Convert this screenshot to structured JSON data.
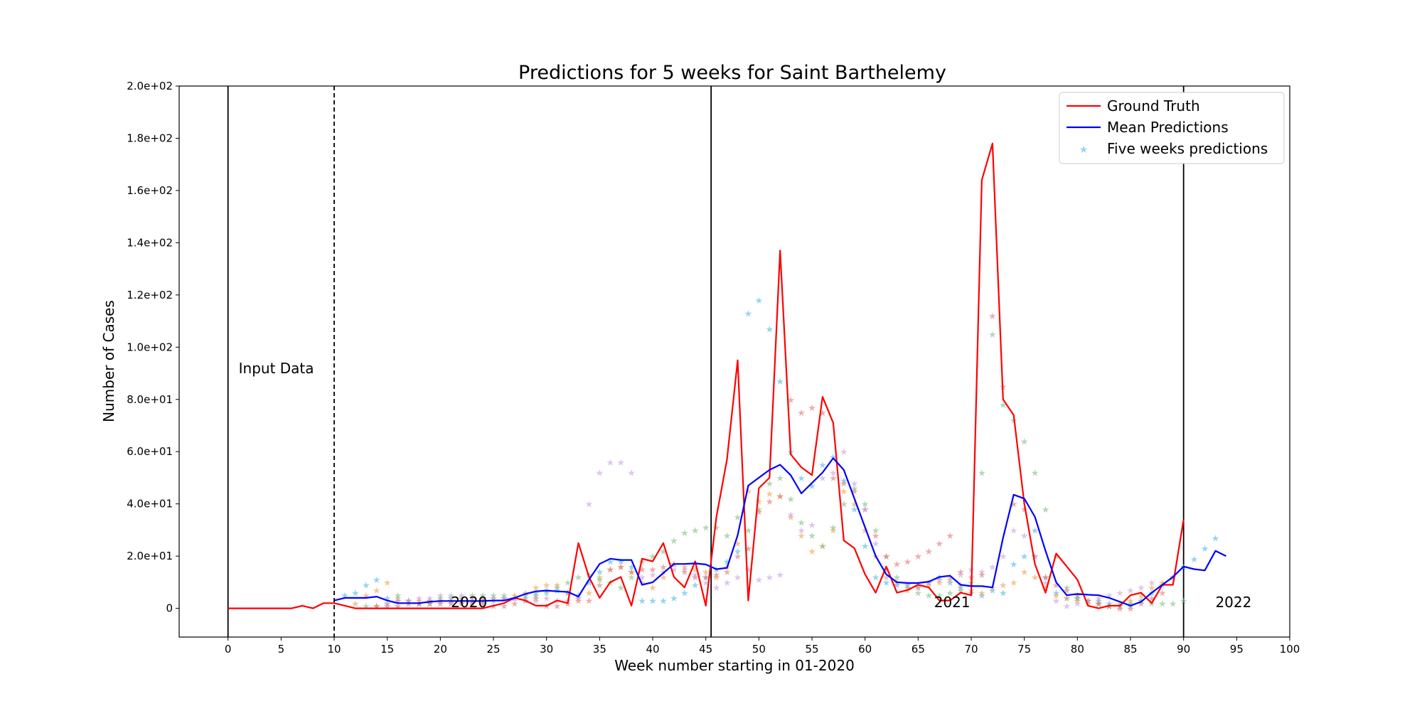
{
  "chart_data": {
    "type": "line",
    "title": "Predictions for 5 weeks for Saint Barthelemy",
    "xlabel": "Week number starting in 01-2020",
    "ylabel": "Number of Cases",
    "xlim": [
      -4.6,
      100
    ],
    "ylim": [
      -11,
      200
    ],
    "xticks": [
      0,
      5,
      10,
      15,
      20,
      25,
      30,
      35,
      40,
      45,
      50,
      55,
      60,
      65,
      70,
      75,
      80,
      85,
      90,
      95,
      100
    ],
    "xtick_labels": [
      "0",
      "5",
      "10",
      "15",
      "20",
      "25",
      "30",
      "35",
      "40",
      "45",
      "50",
      "55",
      "60",
      "65",
      "70",
      "75",
      "80",
      "85",
      "90",
      "95",
      "100"
    ],
    "yticks": [
      0,
      20,
      40,
      60,
      80,
      100,
      120,
      140,
      160,
      180,
      200
    ],
    "ytick_labels": [
      "0",
      "2.0e+01",
      "4.0e+01",
      "6.0e+01",
      "8.0e+01",
      "1.0e+02",
      "1.2e+02",
      "1.4e+02",
      "1.6e+02",
      "1.8e+02",
      "2.0e+02"
    ],
    "legend_position": "top-right",
    "grid": false,
    "vertical_lines": [
      {
        "x": 0,
        "style": "solid"
      },
      {
        "x": 10,
        "style": "dashed"
      },
      {
        "x": 45.5,
        "style": "solid"
      },
      {
        "x": 90,
        "style": "solid"
      }
    ],
    "annotations": [
      {
        "text": "Input Data",
        "x": 1,
        "y": 90
      },
      {
        "text": "2020",
        "x": 21,
        "y": 0.5
      },
      {
        "text": "2021",
        "x": 66.5,
        "y": 0.5
      },
      {
        "text": "2022",
        "x": 93,
        "y": 0.5
      }
    ],
    "series": [
      {
        "name": "Ground Truth",
        "color": "#ff0000",
        "style": "line",
        "x": [
          0,
          1,
          2,
          3,
          4,
          5,
          6,
          7,
          8,
          9,
          10,
          11,
          12,
          13,
          14,
          15,
          16,
          17,
          18,
          19,
          20,
          21,
          22,
          23,
          24,
          25,
          26,
          27,
          28,
          29,
          30,
          31,
          32,
          33,
          34,
          35,
          36,
          37,
          38,
          39,
          40,
          41,
          42,
          43,
          44,
          45,
          46,
          47,
          48,
          49,
          50,
          51,
          52,
          53,
          54,
          55,
          56,
          57,
          58,
          59,
          60,
          61,
          62,
          63,
          64,
          65,
          66,
          67,
          68,
          69,
          70,
          71,
          72,
          73,
          74,
          75,
          76,
          77,
          78,
          79,
          80,
          81,
          82,
          83,
          84,
          85,
          86,
          87,
          88,
          89,
          90
        ],
        "values": [
          0,
          0,
          0,
          0,
          0,
          0,
          0,
          1,
          0,
          2,
          2,
          1,
          0,
          0,
          0,
          0,
          0,
          0,
          0,
          0,
          0,
          0,
          0,
          0,
          0,
          1,
          2,
          4,
          3,
          1,
          1,
          3,
          2,
          25,
          12,
          4,
          10,
          12,
          1,
          19,
          18,
          25,
          12,
          8,
          18,
          1,
          35,
          57,
          95,
          3,
          46,
          50,
          137,
          59,
          54,
          51,
          81,
          71,
          26,
          23,
          13,
          6,
          16,
          6,
          7,
          9,
          8,
          3,
          3,
          6,
          5,
          164,
          178,
          80,
          74,
          40,
          17,
          6,
          21,
          16,
          11,
          1,
          0,
          1,
          1,
          5,
          6,
          2,
          9,
          9,
          34
        ]
      },
      {
        "name": "Mean Predictions",
        "color": "#0000ff",
        "style": "line",
        "x": [
          10,
          11,
          12,
          13,
          14,
          15,
          16,
          17,
          18,
          19,
          20,
          21,
          22,
          23,
          24,
          25,
          26,
          27,
          28,
          29,
          30,
          31,
          32,
          33,
          34,
          35,
          36,
          37,
          38,
          39,
          40,
          41,
          42,
          43,
          44,
          45,
          46,
          47,
          48,
          49,
          50,
          51,
          52,
          53,
          54,
          55,
          56,
          57,
          58,
          59,
          60,
          61,
          62,
          63,
          64,
          65,
          66,
          67,
          68,
          69,
          70,
          71,
          72,
          73,
          74,
          75,
          76,
          77,
          78,
          79,
          80,
          81,
          82,
          83,
          84,
          85,
          86,
          87,
          88,
          89,
          90,
          91,
          92,
          93,
          94
        ],
        "values": [
          3,
          4,
          4,
          4,
          4.5,
          3,
          2,
          2,
          2,
          2.5,
          2.8,
          2.8,
          2.8,
          2.8,
          2.8,
          3,
          3,
          4,
          5.5,
          6.5,
          6.8,
          6.5,
          6.3,
          4.5,
          11,
          17,
          19,
          18.5,
          18.5,
          9,
          10,
          13.5,
          17,
          17,
          17.2,
          16.8,
          15,
          15.5,
          28,
          47,
          50,
          53,
          55,
          51,
          44,
          48,
          52,
          57.5,
          53,
          42,
          31,
          20,
          13,
          10,
          9.7,
          9.7,
          10.2,
          12,
          12.5,
          9,
          8.5,
          8.5,
          8,
          27,
          43.5,
          42,
          35,
          22,
          10,
          5,
          5.5,
          5.2,
          5,
          4,
          2.5,
          1,
          2.5,
          6,
          9,
          12,
          16,
          15,
          14.5,
          22,
          20
        ]
      },
      {
        "name": "Five weeks predictions",
        "color": "#4fb7e6",
        "style": "markers",
        "x": [
          11,
          12,
          13,
          14,
          15,
          16,
          17,
          18,
          19,
          20,
          21,
          22,
          23,
          24,
          25,
          26,
          27,
          28,
          29,
          30,
          31,
          32,
          33,
          34,
          35,
          36,
          37,
          38,
          39,
          40,
          41,
          42,
          43,
          44,
          45,
          46,
          47,
          48,
          49,
          50,
          51,
          52,
          53,
          54,
          55,
          56,
          57,
          58,
          59,
          60,
          61,
          62,
          63,
          64,
          65,
          66,
          67,
          68,
          69,
          70,
          71,
          72,
          73,
          74,
          75,
          76,
          77,
          78,
          79,
          80,
          81,
          82,
          83,
          84,
          85,
          86,
          87,
          88,
          89,
          90,
          91,
          92,
          93
        ],
        "values": [
          5,
          6,
          9,
          11,
          4,
          3,
          3,
          2,
          3,
          3,
          3,
          3,
          3,
          3,
          3,
          4,
          4,
          5,
          6,
          7,
          7,
          6,
          5,
          10,
          14,
          18,
          18,
          16,
          3,
          3,
          3,
          4,
          6,
          9,
          12,
          15,
          18,
          22,
          113,
          118,
          107,
          87,
          60,
          50,
          47,
          55,
          58,
          49,
          38,
          24,
          12,
          10,
          9,
          9,
          8,
          10,
          12,
          10,
          8,
          6,
          5,
          7,
          6,
          17,
          20,
          30,
          12,
          6,
          4,
          4,
          3,
          3,
          2,
          1,
          1,
          3,
          6,
          9,
          12,
          16,
          19,
          23,
          27
        ]
      },
      {
        "name": "",
        "color": "#f0a050",
        "style": "markers",
        "x": [
          12,
          13,
          14,
          15,
          16,
          17,
          18,
          19,
          20,
          21,
          22,
          23,
          24,
          25,
          26,
          27,
          28,
          29,
          30,
          31,
          32,
          33,
          34,
          35,
          36,
          37,
          38,
          39,
          40,
          41,
          42,
          43,
          44,
          45,
          46,
          47,
          48,
          49,
          50,
          51,
          52,
          53,
          54,
          55,
          56,
          57,
          58,
          59,
          60,
          61,
          62,
          63,
          64,
          65,
          66,
          67,
          68,
          69,
          70,
          71,
          72,
          73,
          74,
          75,
          76,
          77,
          78,
          79,
          80,
          81,
          82,
          83,
          84,
          85,
          86,
          87,
          88,
          89
        ],
        "values": [
          2,
          5,
          7,
          10,
          4,
          3,
          3,
          3,
          3,
          3,
          3,
          3,
          4,
          4,
          4,
          5,
          6,
          8,
          9,
          9,
          6,
          4,
          6,
          12,
          15,
          16,
          14,
          10,
          8,
          12,
          17,
          16,
          15,
          14,
          12,
          16,
          25,
          45,
          41,
          44,
          43,
          35,
          28,
          22,
          24,
          30,
          45,
          40,
          30,
          20,
          15,
          10,
          7,
          8,
          9,
          10,
          11,
          9,
          7,
          6,
          8,
          9,
          10,
          14,
          12,
          8,
          5,
          4,
          3,
          2,
          2,
          1,
          2,
          3,
          5,
          8,
          10,
          12
        ]
      },
      {
        "name": "",
        "color": "#80c080",
        "style": "markers",
        "x": [
          13,
          14,
          15,
          16,
          17,
          18,
          19,
          20,
          21,
          22,
          23,
          24,
          25,
          26,
          27,
          28,
          29,
          30,
          31,
          32,
          33,
          34,
          35,
          36,
          37,
          38,
          39,
          40,
          41,
          42,
          43,
          44,
          45,
          46,
          47,
          48,
          49,
          50,
          51,
          52,
          53,
          54,
          55,
          56,
          57,
          58,
          59,
          60,
          61,
          62,
          63,
          64,
          65,
          66,
          67,
          68,
          69,
          70,
          71,
          72,
          73,
          74,
          75,
          76,
          77,
          78,
          79,
          80,
          81,
          82,
          83,
          84,
          85,
          86,
          87,
          88,
          89,
          90
        ],
        "values": [
          1,
          1,
          2,
          5,
          3,
          2,
          2,
          4,
          4,
          4,
          5,
          5,
          5,
          5,
          4,
          4,
          5,
          6,
          8,
          10,
          12,
          13,
          11,
          10,
          8,
          12,
          18,
          20,
          22,
          26,
          29,
          30,
          31,
          31,
          28,
          35,
          30,
          38,
          48,
          50,
          42,
          33,
          28,
          24,
          31,
          40,
          46,
          40,
          30,
          20,
          12,
          8,
          6,
          5,
          5,
          6,
          7,
          10,
          52,
          105,
          78,
          72,
          64,
          52,
          38,
          20,
          8,
          4,
          3,
          2,
          1,
          1,
          2,
          3,
          2,
          2,
          2,
          3
        ]
      },
      {
        "name": "",
        "color": "#e07878",
        "style": "markers",
        "x": [
          14,
          15,
          16,
          17,
          18,
          19,
          20,
          21,
          22,
          23,
          24,
          25,
          26,
          27,
          28,
          29,
          30,
          31,
          32,
          33,
          34,
          35,
          36,
          37,
          38,
          39,
          40,
          41,
          42,
          43,
          44,
          45,
          46,
          47,
          48,
          49,
          50,
          51,
          52,
          53,
          54,
          55,
          56,
          57,
          58,
          59,
          60,
          61,
          62,
          63,
          64,
          65,
          66,
          67,
          68,
          69,
          70,
          71,
          72,
          73,
          74,
          75,
          76,
          77,
          78,
          79,
          80,
          81,
          82,
          83,
          84,
          85,
          86,
          87,
          88
        ],
        "values": [
          1,
          1,
          1,
          2,
          2,
          2,
          2,
          2,
          2,
          2,
          2,
          1,
          1,
          2,
          3,
          4,
          1,
          1,
          2,
          3,
          3,
          9,
          15,
          16,
          14,
          15,
          15,
          16,
          17,
          14,
          12,
          12,
          13,
          14,
          20,
          23,
          37,
          41,
          43,
          80,
          75,
          77,
          75,
          50,
          48,
          45,
          38,
          28,
          20,
          17,
          18,
          20,
          22,
          25,
          28,
          14,
          12,
          13,
          112,
          85,
          40,
          38,
          20,
          12,
          9,
          7,
          5,
          3,
          2,
          1,
          0,
          0,
          2,
          4,
          6
        ]
      },
      {
        "name": "",
        "color": "#c8a0e0",
        "style": "markers",
        "x": [
          15,
          16,
          17,
          18,
          19,
          20,
          21,
          22,
          23,
          24,
          25,
          26,
          27,
          28,
          29,
          30,
          31,
          32,
          33,
          34,
          35,
          36,
          37,
          38,
          39,
          40,
          41,
          42,
          43,
          44,
          45,
          46,
          47,
          48,
          49,
          50,
          51,
          52,
          53,
          54,
          55,
          56,
          57,
          58,
          59,
          60,
          61,
          62,
          63,
          64,
          65,
          66,
          67,
          68,
          69,
          70,
          71,
          72,
          73,
          74,
          75,
          76,
          77,
          78,
          79,
          80,
          81,
          82,
          83,
          84,
          85,
          86,
          87
        ],
        "values": [
          2,
          3,
          3,
          4,
          4,
          5,
          5,
          5,
          4,
          4,
          4,
          4,
          4,
          3,
          3,
          4,
          3,
          3,
          4,
          40,
          52,
          56,
          56,
          52,
          12,
          13,
          14,
          15,
          15,
          13,
          10,
          8,
          10,
          12,
          15,
          11,
          12,
          13,
          36,
          30,
          32,
          50,
          52,
          60,
          48,
          38,
          25,
          12,
          10,
          9,
          9,
          10,
          11,
          12,
          13,
          15,
          14,
          16,
          20,
          30,
          28,
          20,
          10,
          3,
          1,
          2,
          3,
          4,
          5,
          6,
          7,
          8,
          10
        ]
      }
    ]
  }
}
